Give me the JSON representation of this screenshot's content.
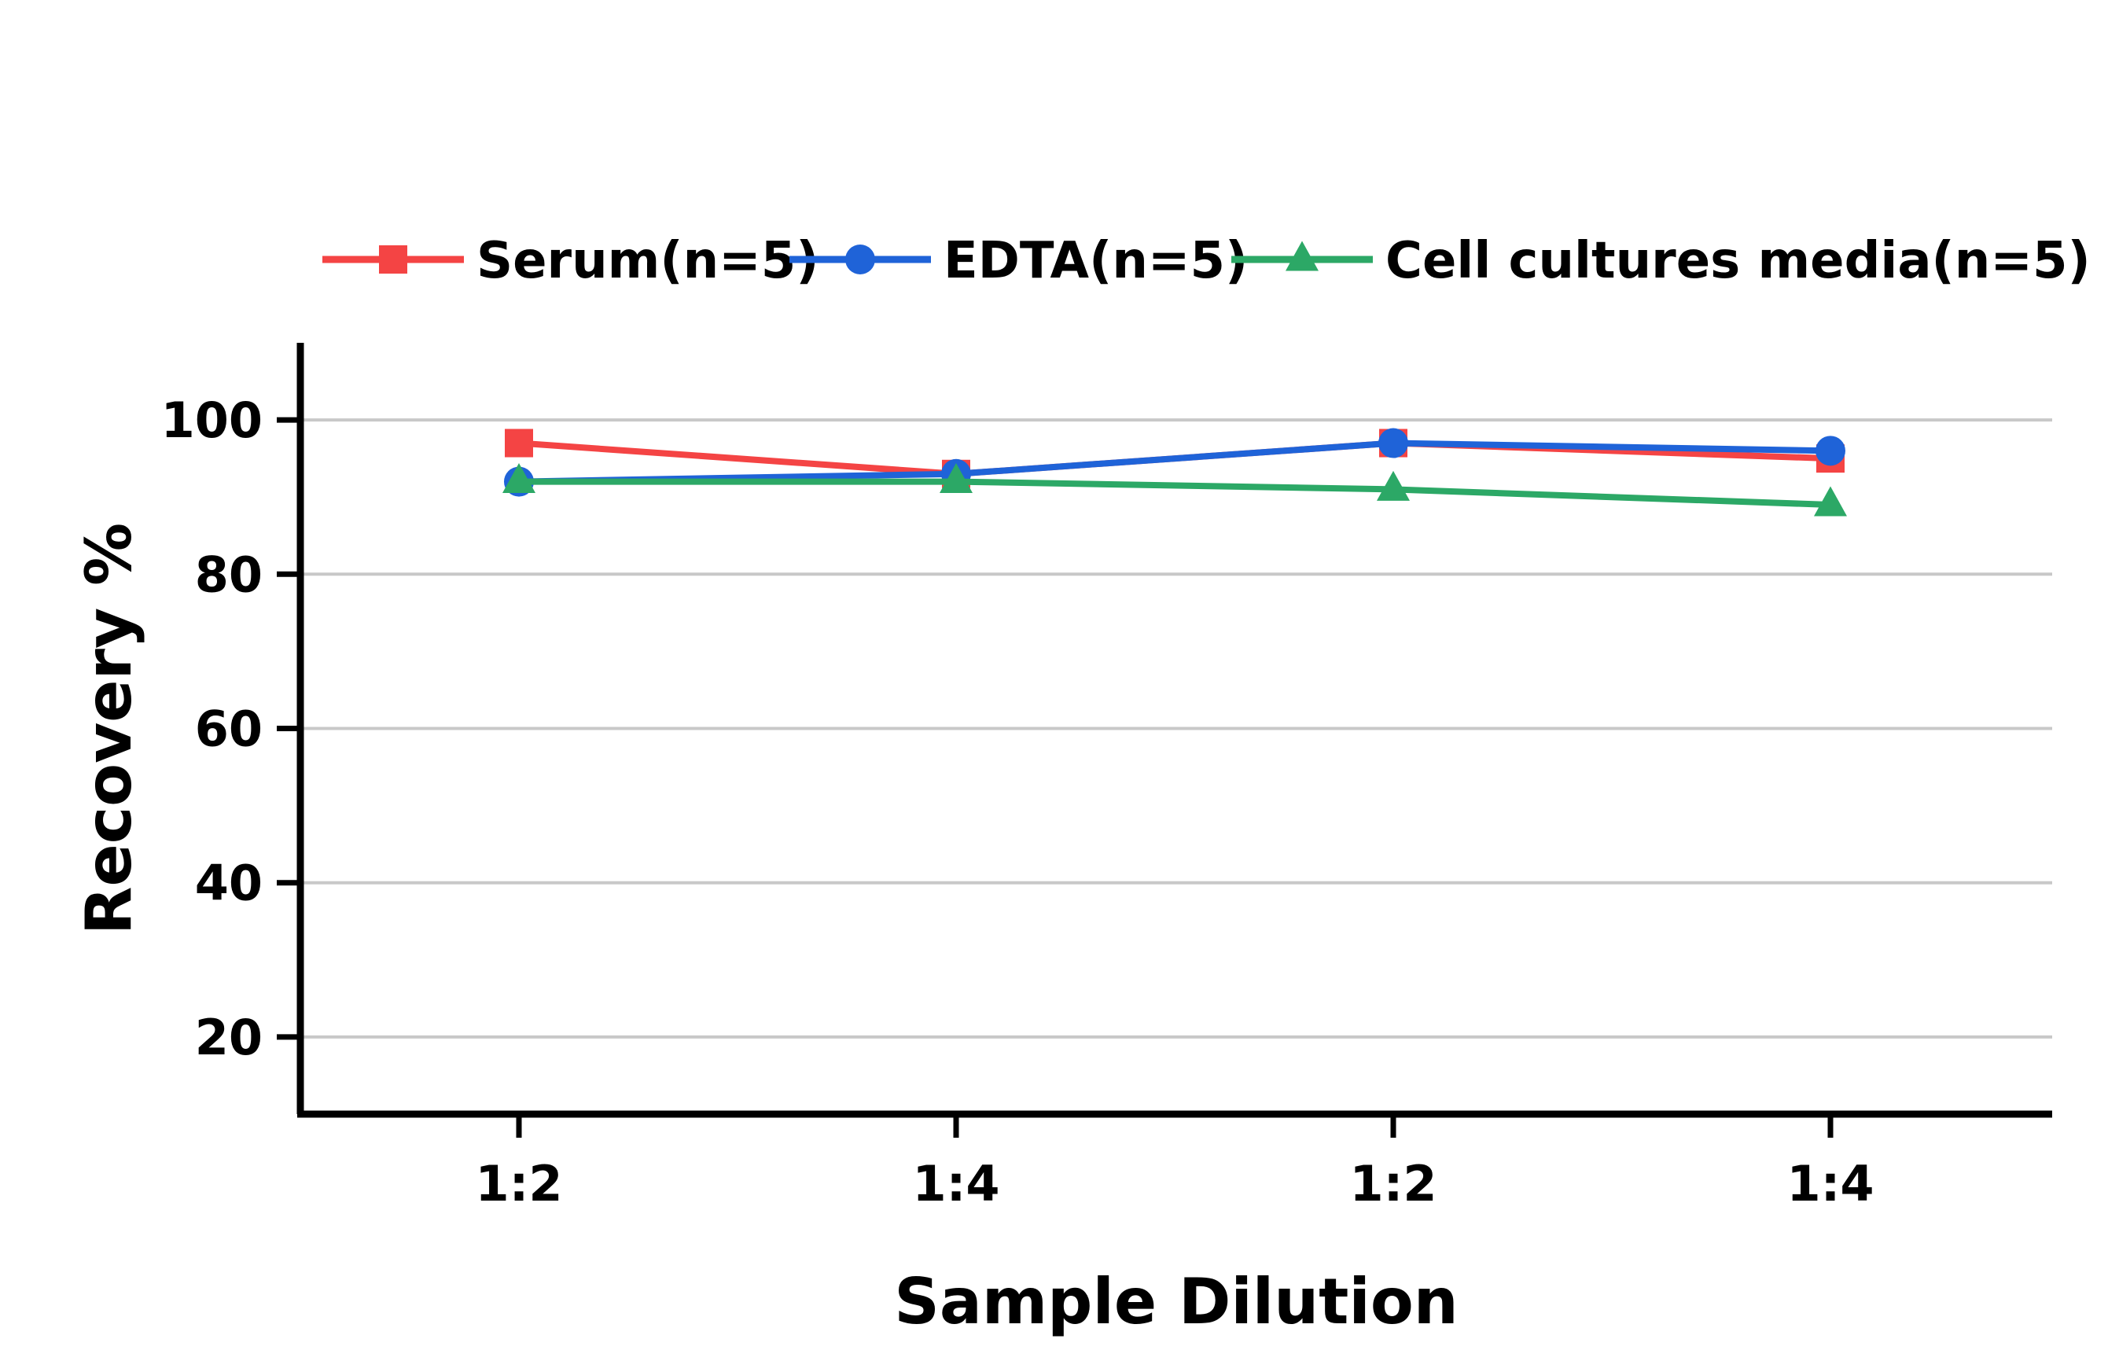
{
  "chart_data": {
    "type": "line",
    "categories": [
      "1:2",
      "1:4",
      "1:2",
      "1:4"
    ],
    "xlabel": "Sample Dilution",
    "ylabel": "Recovery %",
    "ylim": [
      10,
      110
    ],
    "yticks": [
      20,
      40,
      60,
      80,
      100
    ],
    "grid": true,
    "legend": "top",
    "series": [
      {
        "name": "Serum(n=5)",
        "color": "#f44444",
        "marker": "square",
        "values": [
          97,
          93,
          97,
          95
        ]
      },
      {
        "name": "EDTA(n=5)",
        "color": "#1f63d8",
        "marker": "circle",
        "values": [
          92,
          93,
          97,
          96
        ]
      },
      {
        "name": "Cell cultures media(n=5)",
        "color": "#2ca866",
        "marker": "triangle",
        "values": [
          92,
          92,
          91,
          89
        ]
      }
    ]
  }
}
